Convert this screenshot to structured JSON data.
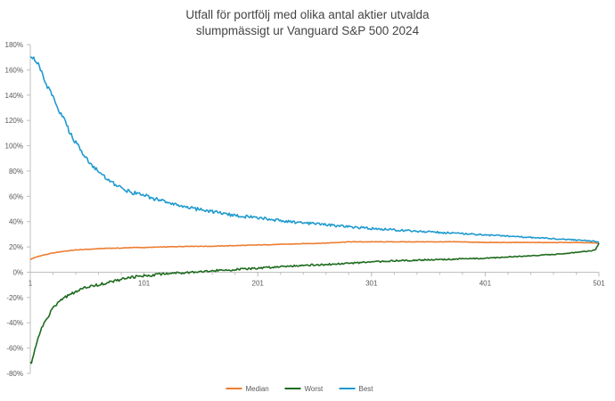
{
  "chart_data": {
    "type": "line",
    "title_lines": [
      "Utfall för portfölj med olika antal aktier utvalda",
      "slumpmässigt ur Vanguard S&P 500 2024"
    ],
    "xlabel": "",
    "ylabel": "",
    "xlim": [
      1,
      501
    ],
    "ylim": [
      -0.8,
      1.8
    ],
    "x_ticks": [
      1,
      101,
      201,
      301,
      401,
      501
    ],
    "y_ticks": [
      {
        "value": 1.8,
        "label": "180%"
      },
      {
        "value": 1.6,
        "label": "160%"
      },
      {
        "value": 1.4,
        "label": "140%"
      },
      {
        "value": 1.2,
        "label": "120%"
      },
      {
        "value": 1.0,
        "label": "100%"
      },
      {
        "value": 0.8,
        "label": "80%"
      },
      {
        "value": 0.6,
        "label": "60%"
      },
      {
        "value": 0.4,
        "label": "40%"
      },
      {
        "value": 0.2,
        "label": "20%"
      },
      {
        "value": 0.0,
        "label": "0%"
      },
      {
        "value": -0.2,
        "label": "-20%"
      },
      {
        "value": -0.4,
        "label": "-40%"
      },
      {
        "value": -0.6,
        "label": "-60%"
      },
      {
        "value": -0.8,
        "label": "-80%"
      }
    ],
    "grid": false,
    "legend_position": "bottom",
    "series": [
      {
        "name": "Median",
        "color": "#ED7D31",
        "points": [
          [
            1,
            0.1
          ],
          [
            3,
            0.11
          ],
          [
            10,
            0.13
          ],
          [
            20,
            0.15
          ],
          [
            30,
            0.165
          ],
          [
            40,
            0.175
          ],
          [
            50,
            0.18
          ],
          [
            60,
            0.185
          ],
          [
            70,
            0.19
          ],
          [
            80,
            0.19
          ],
          [
            90,
            0.195
          ],
          [
            101,
            0.195
          ],
          [
            120,
            0.2
          ],
          [
            140,
            0.205
          ],
          [
            160,
            0.205
          ],
          [
            180,
            0.21
          ],
          [
            201,
            0.215
          ],
          [
            220,
            0.22
          ],
          [
            240,
            0.225
          ],
          [
            260,
            0.23
          ],
          [
            280,
            0.24
          ],
          [
            301,
            0.24
          ],
          [
            320,
            0.24
          ],
          [
            340,
            0.24
          ],
          [
            360,
            0.24
          ],
          [
            380,
            0.24
          ],
          [
            401,
            0.235
          ],
          [
            420,
            0.235
          ],
          [
            440,
            0.235
          ],
          [
            460,
            0.235
          ],
          [
            480,
            0.235
          ],
          [
            495,
            0.233
          ],
          [
            500,
            0.23
          ],
          [
            501,
            0.225
          ]
        ]
      },
      {
        "name": "Worst",
        "color": "#1E6B1E",
        "points": [
          [
            1,
            -0.71
          ],
          [
            2,
            -0.72
          ],
          [
            3,
            -0.68
          ],
          [
            5,
            -0.6
          ],
          [
            8,
            -0.52
          ],
          [
            12,
            -0.42
          ],
          [
            16,
            -0.36
          ],
          [
            20,
            -0.3
          ],
          [
            25,
            -0.24
          ],
          [
            30,
            -0.21
          ],
          [
            35,
            -0.18
          ],
          [
            40,
            -0.16
          ],
          [
            45,
            -0.14
          ],
          [
            50,
            -0.12
          ],
          [
            55,
            -0.11
          ],
          [
            60,
            -0.1
          ],
          [
            70,
            -0.08
          ],
          [
            80,
            -0.06
          ],
          [
            90,
            -0.04
          ],
          [
            101,
            -0.03
          ],
          [
            120,
            -0.01
          ],
          [
            140,
            0.0
          ],
          [
            160,
            0.01
          ],
          [
            180,
            0.02
          ],
          [
            201,
            0.03
          ],
          [
            220,
            0.045
          ],
          [
            240,
            0.055
          ],
          [
            260,
            0.06
          ],
          [
            280,
            0.07
          ],
          [
            301,
            0.08
          ],
          [
            320,
            0.09
          ],
          [
            340,
            0.095
          ],
          [
            360,
            0.1
          ],
          [
            380,
            0.105
          ],
          [
            401,
            0.11
          ],
          [
            420,
            0.12
          ],
          [
            440,
            0.13
          ],
          [
            460,
            0.14
          ],
          [
            480,
            0.155
          ],
          [
            490,
            0.165
          ],
          [
            495,
            0.17
          ],
          [
            498,
            0.18
          ],
          [
            500,
            0.21
          ],
          [
            501,
            0.23
          ]
        ]
      },
      {
        "name": "Best",
        "color": "#1F9ACF",
        "points": [
          [
            1,
            1.7
          ],
          [
            3,
            1.7
          ],
          [
            5,
            1.68
          ],
          [
            8,
            1.64
          ],
          [
            12,
            1.56
          ],
          [
            16,
            1.47
          ],
          [
            20,
            1.4
          ],
          [
            25,
            1.3
          ],
          [
            30,
            1.22
          ],
          [
            35,
            1.12
          ],
          [
            40,
            1.04
          ],
          [
            45,
            0.97
          ],
          [
            50,
            0.9
          ],
          [
            55,
            0.85
          ],
          [
            60,
            0.8
          ],
          [
            65,
            0.76
          ],
          [
            70,
            0.72
          ],
          [
            80,
            0.67
          ],
          [
            90,
            0.63
          ],
          [
            101,
            0.61
          ],
          [
            110,
            0.58
          ],
          [
            120,
            0.555
          ],
          [
            130,
            0.535
          ],
          [
            140,
            0.51
          ],
          [
            150,
            0.495
          ],
          [
            160,
            0.48
          ],
          [
            170,
            0.465
          ],
          [
            180,
            0.45
          ],
          [
            190,
            0.44
          ],
          [
            201,
            0.43
          ],
          [
            220,
            0.41
          ],
          [
            240,
            0.39
          ],
          [
            260,
            0.375
          ],
          [
            280,
            0.36
          ],
          [
            301,
            0.345
          ],
          [
            320,
            0.335
          ],
          [
            340,
            0.325
          ],
          [
            360,
            0.315
          ],
          [
            380,
            0.305
          ],
          [
            401,
            0.295
          ],
          [
            420,
            0.285
          ],
          [
            440,
            0.275
          ],
          [
            460,
            0.265
          ],
          [
            480,
            0.255
          ],
          [
            490,
            0.25
          ],
          [
            500,
            0.24
          ],
          [
            501,
            0.235
          ]
        ]
      }
    ]
  }
}
